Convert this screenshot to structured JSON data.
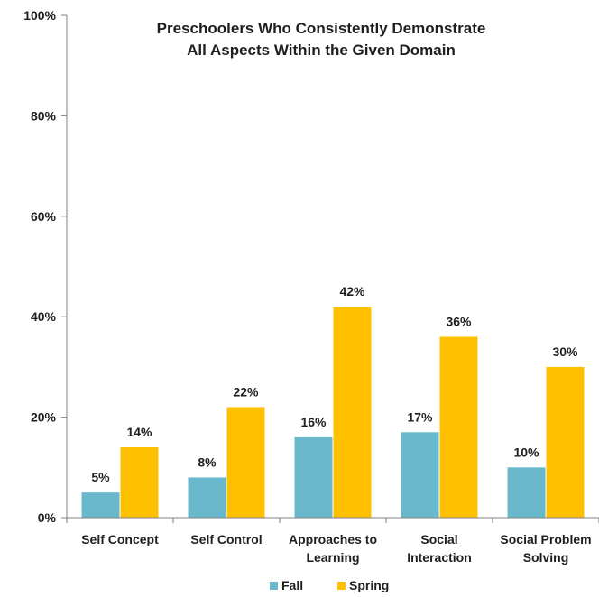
{
  "chart_data": {
    "type": "bar",
    "title_lines": [
      "Preschoolers Who Consistently Demonstrate",
      "All Aspects Within the Given Domain"
    ],
    "categories": [
      [
        "Self Concept"
      ],
      [
        "Self Control"
      ],
      [
        "Approaches to",
        "Learning"
      ],
      [
        "Social",
        "Interaction"
      ],
      [
        "Social Problem",
        "Solving"
      ]
    ],
    "series": [
      {
        "name": "Fall",
        "color": "#6ab8cc",
        "values": [
          5,
          8,
          16,
          17,
          10
        ],
        "value_labels": [
          "5%",
          "8%",
          "16%",
          "17%",
          "10%"
        ]
      },
      {
        "name": "Spring",
        "color": "#ffc000",
        "values": [
          14,
          22,
          42,
          36,
          30
        ],
        "value_labels": [
          "14%",
          "22%",
          "42%",
          "36%",
          "30%"
        ]
      }
    ],
    "y_ticks": [
      {
        "value": 0,
        "label": "0%"
      },
      {
        "value": 20,
        "label": "20%"
      },
      {
        "value": 40,
        "label": "40%"
      },
      {
        "value": 60,
        "label": "60%"
      },
      {
        "value": 80,
        "label": "80%"
      },
      {
        "value": 100,
        "label": "100%"
      }
    ],
    "ylim": [
      0,
      100
    ],
    "grid": false,
    "legend_position": "bottom"
  }
}
